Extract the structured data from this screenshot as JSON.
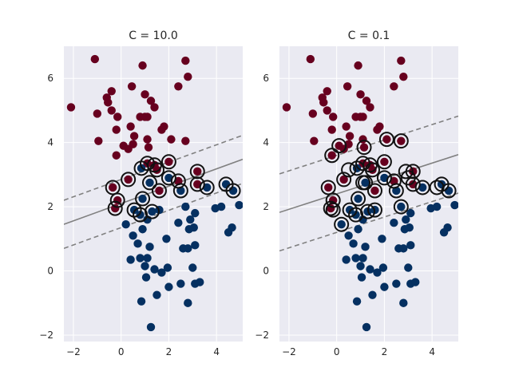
{
  "chart_data": [
    {
      "type": "scatter",
      "title": "C = 10.0",
      "xlabel": "",
      "ylabel": "",
      "xlim": [
        -2.4,
        5.1
      ],
      "ylim": [
        -2.2,
        7.0
      ],
      "xticks": [
        -2,
        0,
        2,
        4
      ],
      "yticks": [
        -2,
        0,
        2,
        4,
        6
      ],
      "grid": true,
      "colors": {
        "class_0": "#67001f",
        "class_1": "#053061",
        "background": "#eaeaf2",
        "boundary": "#808080"
      },
      "boundary": {
        "slope": 0.27,
        "intercept": 2.1,
        "margin": 0.75
      },
      "series": [
        {
          "points": [
            [
              -2.1,
              5.1
            ],
            [
              -1.1,
              6.6
            ],
            [
              -1.0,
              4.9
            ],
            [
              -0.95,
              4.05
            ],
            [
              -0.6,
              5.4
            ],
            [
              -0.55,
              5.25
            ],
            [
              -0.4,
              5.6
            ],
            [
              -0.4,
              5.0
            ],
            [
              -0.2,
              4.4
            ],
            [
              -0.2,
              3.6
            ],
            [
              -0.15,
              4.8
            ],
            [
              0.1,
              3.9
            ],
            [
              0.3,
              3.8
            ],
            [
              0.4,
              4.5
            ],
            [
              0.45,
              5.75
            ],
            [
              0.5,
              3.95
            ],
            [
              0.55,
              4.2
            ],
            [
              0.8,
              4.8
            ],
            [
              0.9,
              6.4
            ],
            [
              1.0,
              5.5
            ],
            [
              1.0,
              4.8
            ],
            [
              1.1,
              4.8
            ],
            [
              1.1,
              4.1
            ],
            [
              1.15,
              3.85
            ],
            [
              1.25,
              5.3
            ],
            [
              1.4,
              5.1
            ],
            [
              1.7,
              4.4
            ],
            [
              1.8,
              4.5
            ],
            [
              2.1,
              4.1
            ],
            [
              2.4,
              5.75
            ],
            [
              2.7,
              6.55
            ],
            [
              2.7,
              4.05
            ],
            [
              2.8,
              6.05
            ],
            [
              -0.25,
              1.95
            ],
            [
              0.3,
              2.85
            ],
            [
              1.1,
              3.35
            ],
            [
              1.4,
              3.3
            ],
            [
              1.5,
              3.15
            ],
            [
              1.6,
              2.5
            ],
            [
              2.0,
              3.4
            ],
            [
              2.4,
              2.8
            ],
            [
              3.2,
              3.1
            ],
            [
              3.2,
              2.7
            ],
            [
              -0.35,
              2.6
            ],
            [
              -0.15,
              2.2
            ]
          ]
        },
        {
          "points": [
            [
              0.2,
              1.45
            ],
            [
              0.4,
              0.35
            ],
            [
              0.5,
              1.1
            ],
            [
              0.7,
              0.85
            ],
            [
              0.8,
              0.4
            ],
            [
              0.85,
              -0.95
            ],
            [
              0.9,
              1.3
            ],
            [
              1.0,
              0.15
            ],
            [
              1.05,
              -0.2
            ],
            [
              1.1,
              1.6
            ],
            [
              1.1,
              0.4
            ],
            [
              1.2,
              0.75
            ],
            [
              1.25,
              -1.75
            ],
            [
              1.4,
              0.05
            ],
            [
              1.5,
              -0.75
            ],
            [
              1.6,
              1.9
            ],
            [
              1.7,
              -0.05
            ],
            [
              1.9,
              1.0
            ],
            [
              1.95,
              0.1
            ],
            [
              2.0,
              -0.5
            ],
            [
              2.4,
              1.5
            ],
            [
              2.5,
              -0.4
            ],
            [
              2.6,
              0.7
            ],
            [
              2.7,
              2.0
            ],
            [
              2.8,
              0.7
            ],
            [
              2.8,
              -1.0
            ],
            [
              2.85,
              1.3
            ],
            [
              2.9,
              1.6
            ],
            [
              3.0,
              0.1
            ],
            [
              3.05,
              1.35
            ],
            [
              3.1,
              0.8
            ],
            [
              3.1,
              -0.4
            ],
            [
              3.1,
              1.8
            ],
            [
              3.3,
              -0.35
            ],
            [
              3.95,
              1.95
            ],
            [
              4.2,
              2.0
            ],
            [
              4.5,
              1.2
            ],
            [
              4.65,
              1.35
            ],
            [
              4.95,
              2.05
            ],
            [
              0.55,
              1.9
            ],
            [
              0.8,
              1.75
            ],
            [
              0.9,
              2.25
            ],
            [
              0.85,
              3.2
            ],
            [
              1.2,
              2.75
            ],
            [
              1.3,
              1.85
            ],
            [
              2.0,
              2.9
            ],
            [
              2.5,
              2.5
            ],
            [
              3.6,
              2.6
            ],
            [
              4.4,
              2.7
            ],
            [
              4.7,
              2.5
            ]
          ]
        }
      ],
      "support_vectors": [
        [
          -0.35,
          2.6
        ],
        [
          -0.15,
          2.2
        ],
        [
          -0.25,
          1.95
        ],
        [
          0.55,
          1.9
        ],
        [
          0.8,
          1.75
        ],
        [
          0.3,
          2.85
        ],
        [
          0.85,
          3.2
        ],
        [
          0.9,
          2.25
        ],
        [
          1.1,
          3.35
        ],
        [
          1.2,
          2.75
        ],
        [
          1.3,
          1.85
        ],
        [
          1.4,
          3.3
        ],
        [
          1.5,
          3.15
        ],
        [
          1.6,
          2.5
        ],
        [
          2.0,
          3.4
        ],
        [
          2.0,
          2.9
        ],
        [
          2.4,
          2.8
        ],
        [
          2.5,
          2.5
        ],
        [
          3.2,
          3.1
        ],
        [
          3.2,
          2.7
        ],
        [
          3.6,
          2.6
        ],
        [
          4.4,
          2.7
        ],
        [
          4.7,
          2.5
        ]
      ]
    },
    {
      "type": "scatter",
      "title": "C = 0.1",
      "xlabel": "",
      "ylabel": "",
      "xlim": [
        -2.4,
        5.1
      ],
      "ylim": [
        -2.2,
        7.0
      ],
      "xticks": [
        -2,
        0,
        2,
        4
      ],
      "yticks": [
        -2,
        0,
        2,
        4,
        6
      ],
      "grid": true,
      "colors": {
        "class_0": "#67001f",
        "class_1": "#053061",
        "background": "#eaeaf2",
        "boundary": "#808080"
      },
      "boundary": {
        "slope": 0.24,
        "intercept": 2.4,
        "margin": 1.2
      },
      "series": [
        {
          "points": [
            [
              -2.1,
              5.1
            ],
            [
              -1.1,
              6.6
            ],
            [
              -1.0,
              4.9
            ],
            [
              -0.95,
              4.05
            ],
            [
              -0.6,
              5.4
            ],
            [
              -0.55,
              5.25
            ],
            [
              -0.4,
              5.6
            ],
            [
              -0.4,
              5.0
            ],
            [
              -0.2,
              4.4
            ],
            [
              -0.2,
              3.6
            ],
            [
              -0.15,
              4.8
            ],
            [
              0.1,
              3.9
            ],
            [
              0.3,
              3.8
            ],
            [
              0.4,
              4.5
            ],
            [
              0.45,
              5.75
            ],
            [
              0.5,
              3.95
            ],
            [
              0.55,
              4.2
            ],
            [
              0.8,
              4.8
            ],
            [
              0.9,
              6.4
            ],
            [
              1.0,
              5.5
            ],
            [
              1.0,
              4.8
            ],
            [
              1.1,
              4.8
            ],
            [
              1.1,
              4.1
            ],
            [
              1.15,
              3.85
            ],
            [
              1.25,
              5.3
            ],
            [
              1.4,
              5.1
            ],
            [
              1.7,
              4.4
            ],
            [
              1.8,
              4.5
            ],
            [
              2.1,
              4.1
            ],
            [
              2.4,
              5.75
            ],
            [
              2.7,
              6.55
            ],
            [
              2.7,
              4.05
            ],
            [
              2.8,
              6.05
            ],
            [
              -0.25,
              1.95
            ],
            [
              0.3,
              2.85
            ],
            [
              1.1,
              3.35
            ],
            [
              1.4,
              3.3
            ],
            [
              1.5,
              3.15
            ],
            [
              1.6,
              2.5
            ],
            [
              2.0,
              3.4
            ],
            [
              2.4,
              2.8
            ],
            [
              3.2,
              3.1
            ],
            [
              3.2,
              2.7
            ],
            [
              -0.35,
              2.6
            ],
            [
              -0.15,
              2.2
            ]
          ]
        },
        {
          "points": [
            [
              0.2,
              1.45
            ],
            [
              0.4,
              0.35
            ],
            [
              0.5,
              1.1
            ],
            [
              0.7,
              0.85
            ],
            [
              0.8,
              0.4
            ],
            [
              0.85,
              -0.95
            ],
            [
              0.9,
              1.3
            ],
            [
              1.0,
              0.15
            ],
            [
              1.05,
              -0.2
            ],
            [
              1.1,
              1.6
            ],
            [
              1.1,
              0.4
            ],
            [
              1.2,
              0.75
            ],
            [
              1.25,
              -1.75
            ],
            [
              1.4,
              0.05
            ],
            [
              1.5,
              -0.75
            ],
            [
              1.6,
              1.9
            ],
            [
              1.7,
              -0.05
            ],
            [
              1.9,
              1.0
            ],
            [
              1.95,
              0.1
            ],
            [
              2.0,
              -0.5
            ],
            [
              2.4,
              1.5
            ],
            [
              2.5,
              -0.4
            ],
            [
              2.6,
              0.7
            ],
            [
              2.7,
              2.0
            ],
            [
              2.8,
              0.7
            ],
            [
              2.8,
              -1.0
            ],
            [
              2.85,
              1.3
            ],
            [
              2.9,
              1.6
            ],
            [
              3.0,
              0.1
            ],
            [
              3.05,
              1.35
            ],
            [
              3.1,
              0.8
            ],
            [
              3.1,
              -0.4
            ],
            [
              3.1,
              1.8
            ],
            [
              3.3,
              -0.35
            ],
            [
              3.95,
              1.95
            ],
            [
              4.2,
              2.0
            ],
            [
              4.5,
              1.2
            ],
            [
              4.65,
              1.35
            ],
            [
              4.95,
              2.05
            ],
            [
              0.55,
              1.9
            ],
            [
              0.8,
              1.75
            ],
            [
              0.9,
              2.25
            ],
            [
              0.85,
              3.2
            ],
            [
              1.2,
              2.75
            ],
            [
              1.3,
              1.85
            ],
            [
              2.0,
              2.9
            ],
            [
              2.5,
              2.5
            ],
            [
              3.6,
              2.6
            ],
            [
              4.4,
              2.7
            ],
            [
              4.7,
              2.5
            ]
          ]
        }
      ],
      "support_vectors": [
        [
          -0.35,
          2.6
        ],
        [
          -0.15,
          2.2
        ],
        [
          -0.25,
          1.95
        ],
        [
          0.55,
          1.9
        ],
        [
          0.8,
          1.75
        ],
        [
          0.3,
          2.85
        ],
        [
          0.85,
          3.2
        ],
        [
          0.9,
          2.25
        ],
        [
          1.1,
          3.35
        ],
        [
          1.2,
          2.75
        ],
        [
          1.3,
          1.85
        ],
        [
          1.4,
          3.3
        ],
        [
          1.5,
          3.15
        ],
        [
          1.6,
          2.5
        ],
        [
          2.0,
          3.4
        ],
        [
          2.0,
          2.9
        ],
        [
          2.4,
          2.8
        ],
        [
          2.5,
          2.5
        ],
        [
          3.2,
          3.1
        ],
        [
          3.2,
          2.7
        ],
        [
          3.6,
          2.6
        ],
        [
          4.4,
          2.7
        ],
        [
          4.7,
          2.5
        ],
        [
          0.2,
          1.45
        ],
        [
          1.6,
          1.9
        ],
        [
          2.7,
          2.0
        ],
        [
          -0.2,
          3.6
        ],
        [
          2.1,
          4.1
        ],
        [
          2.7,
          4.05
        ],
        [
          1.15,
          3.85
        ],
        [
          0.1,
          3.9
        ],
        [
          1.1,
          2.75
        ],
        [
          4.2,
          2.6
        ],
        [
          0.5,
          3.15
        ],
        [
          2.9,
          3.1
        ],
        [
          -0.15,
          1.9
        ],
        [
          3.0,
          2.9
        ]
      ]
    }
  ]
}
